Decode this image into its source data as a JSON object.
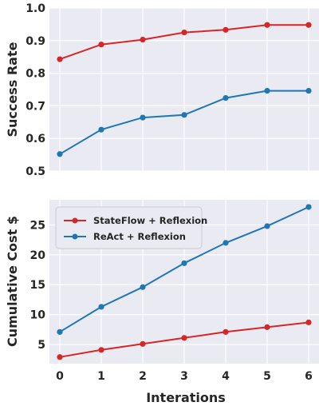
{
  "chart_data": [
    {
      "type": "line",
      "ylabel": "Success Rate",
      "xlabel": "",
      "x": [
        0,
        1,
        2,
        3,
        4,
        5,
        6
      ],
      "xlim": [
        -0.25,
        6.25
      ],
      "ylim": [
        0.5,
        1.0
      ],
      "yticks": [
        0.5,
        0.6,
        0.7,
        0.8,
        0.9,
        1.0
      ],
      "ytick_labels": [
        "0.5",
        "0.6",
        "0.7",
        "0.8",
        "0.9",
        "1.0"
      ],
      "grid": true,
      "series": [
        {
          "name": "StateFlow + Reflexion",
          "color": "#d62728",
          "values": [
            0.843,
            0.888,
            0.903,
            0.925,
            0.933,
            0.948,
            0.948
          ]
        },
        {
          "name": "ReAct + Reflexion",
          "color": "#1f77b4",
          "values": [
            0.552,
            0.627,
            0.664,
            0.672,
            0.724,
            0.746,
            0.746
          ]
        }
      ]
    },
    {
      "type": "line",
      "ylabel": "Cumulative Cost $",
      "xlabel": "Interations",
      "x": [
        0,
        1,
        2,
        3,
        4,
        5,
        6
      ],
      "xtick_labels": [
        "0",
        "1",
        "2",
        "3",
        "4",
        "5",
        "6"
      ],
      "xlim": [
        -0.25,
        6.25
      ],
      "ylim": [
        1.8,
        29.2
      ],
      "yticks": [
        5,
        10,
        15,
        20,
        25
      ],
      "ytick_labels": [
        "5",
        "10",
        "15",
        "20",
        "25"
      ],
      "grid": true,
      "legend_position": "top-left",
      "series": [
        {
          "name": "StateFlow + Reflexion",
          "color": "#d62728",
          "values": [
            2.9,
            4.1,
            5.1,
            6.1,
            7.1,
            7.9,
            8.7
          ]
        },
        {
          "name": "ReAct + Reflexion",
          "color": "#1f77b4",
          "values": [
            7.1,
            11.3,
            14.6,
            18.6,
            22.0,
            24.8,
            28.0
          ]
        }
      ]
    }
  ]
}
